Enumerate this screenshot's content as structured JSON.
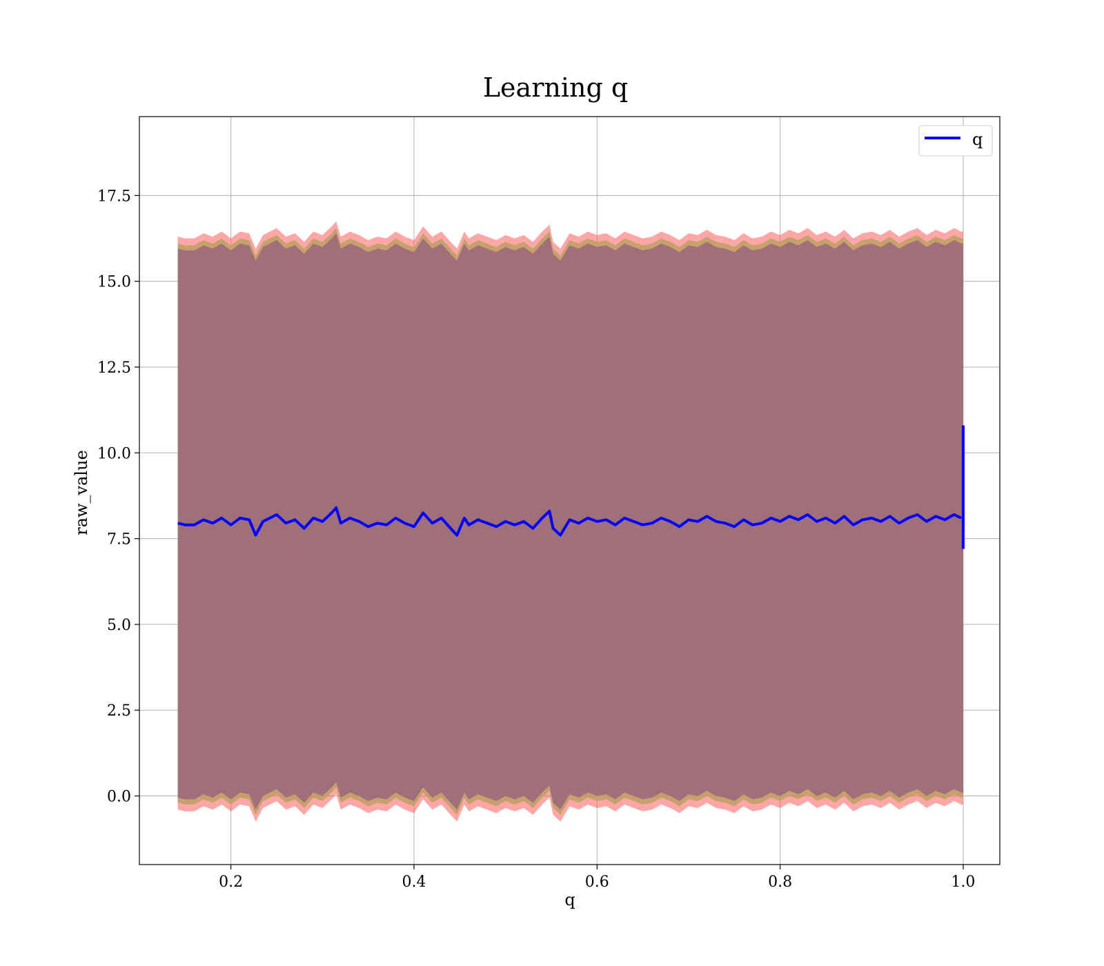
{
  "chart_data": {
    "type": "line",
    "title": "Learning q",
    "xlabel": "q",
    "ylabel": "raw_value",
    "xlim": [
      0.1,
      1.04
    ],
    "ylim": [
      -2.0,
      19.8
    ],
    "x_ticks": [
      0.2,
      0.4,
      0.6,
      0.8,
      1.0
    ],
    "x_tick_labels": [
      "0.2",
      "0.4",
      "0.6",
      "0.8",
      "1.0"
    ],
    "y_ticks": [
      0.0,
      2.5,
      5.0,
      7.5,
      10.0,
      12.5,
      15.0,
      17.5
    ],
    "y_tick_labels": [
      "0.0",
      "2.5",
      "5.0",
      "7.5",
      "10.0",
      "12.5",
      "15.0",
      "17.5"
    ],
    "grid": true,
    "legend_position": "top-right",
    "colors": {
      "line": "#0000ff",
      "outer_band": "#ff5f5f",
      "middle_band": "#b8a060",
      "inner_band": "#a0707a"
    },
    "series": [
      {
        "name": "q",
        "x": [
          0.142,
          0.15,
          0.16,
          0.17,
          0.18,
          0.19,
          0.2,
          0.21,
          0.22,
          0.227,
          0.235,
          0.25,
          0.26,
          0.27,
          0.28,
          0.29,
          0.3,
          0.31,
          0.315,
          0.32,
          0.33,
          0.34,
          0.35,
          0.36,
          0.37,
          0.38,
          0.39,
          0.4,
          0.41,
          0.42,
          0.43,
          0.44,
          0.447,
          0.455,
          0.46,
          0.47,
          0.48,
          0.49,
          0.5,
          0.51,
          0.52,
          0.53,
          0.54,
          0.548,
          0.552,
          0.56,
          0.57,
          0.58,
          0.59,
          0.6,
          0.61,
          0.62,
          0.63,
          0.64,
          0.65,
          0.66,
          0.67,
          0.68,
          0.69,
          0.7,
          0.71,
          0.72,
          0.73,
          0.74,
          0.75,
          0.76,
          0.77,
          0.78,
          0.79,
          0.8,
          0.81,
          0.82,
          0.83,
          0.84,
          0.85,
          0.86,
          0.87,
          0.88,
          0.89,
          0.9,
          0.91,
          0.92,
          0.93,
          0.94,
          0.95,
          0.96,
          0.97,
          0.98,
          0.99,
          0.998
        ],
        "values": [
          7.95,
          7.9,
          7.9,
          8.05,
          7.95,
          8.1,
          7.9,
          8.1,
          8.05,
          7.6,
          8.0,
          8.2,
          7.95,
          8.05,
          7.8,
          8.1,
          8.0,
          8.25,
          8.4,
          7.95,
          8.1,
          8.0,
          7.85,
          7.95,
          7.9,
          8.1,
          7.95,
          7.85,
          8.25,
          7.95,
          8.1,
          7.8,
          7.6,
          8.1,
          7.9,
          8.05,
          7.95,
          7.85,
          8.0,
          7.9,
          8.0,
          7.8,
          8.1,
          8.3,
          7.8,
          7.6,
          8.05,
          7.95,
          8.1,
          8.0,
          8.05,
          7.9,
          8.1,
          8.0,
          7.9,
          7.95,
          8.1,
          8.0,
          7.85,
          8.05,
          8.0,
          8.15,
          8.0,
          7.95,
          7.85,
          8.05,
          7.9,
          7.95,
          8.1,
          8.0,
          8.15,
          8.05,
          8.2,
          8.0,
          8.1,
          7.95,
          8.15,
          7.9,
          8.05,
          8.1,
          8.0,
          8.15,
          7.95,
          8.1,
          8.2,
          8.0,
          8.15,
          8.05,
          8.2,
          8.1
        ]
      }
    ],
    "final_spike": {
      "x": 1.0,
      "y_low": 7.2,
      "y_high": 10.8
    },
    "band_half_widths": {
      "inner": 8.0,
      "middle": 8.15,
      "outer": 8.35
    }
  }
}
